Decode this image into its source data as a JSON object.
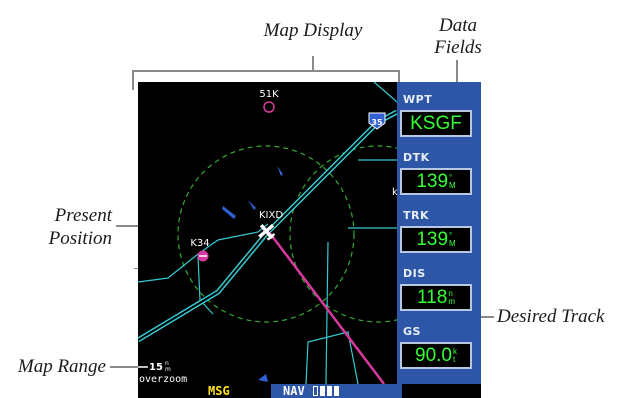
{
  "callouts": {
    "map_display": "Map Display",
    "data_fields_line1": "Data",
    "data_fields_line2": "Fields",
    "present_position_line1": "Present",
    "present_position_line2": "Position",
    "desired_track": "Desired Track",
    "map_range": "Map Range"
  },
  "map": {
    "waypoint_51k": "51K",
    "waypoint_kixd": "KIXD",
    "waypoint_k34": "K34",
    "waypoint_k_partial": "k",
    "highway_shield": "35",
    "range_value": "15",
    "range_unit_top": "n",
    "range_unit_bottom": "m",
    "overzoom": "overzoom"
  },
  "data_fields": [
    {
      "label": "WPT",
      "value": "KSGF",
      "unit_top": "",
      "unit_bottom": ""
    },
    {
      "label": "DTK",
      "value": "139",
      "unit_top": "°",
      "unit_bottom": "M"
    },
    {
      "label": "TRK",
      "value": "139",
      "unit_top": "°",
      "unit_bottom": "M"
    },
    {
      "label": "DIS",
      "value": "118",
      "unit_top": "n",
      "unit_bottom": "m"
    },
    {
      "label": "GS",
      "value": "90.0",
      "unit_top": "k",
      "unit_bottom": "t"
    }
  ],
  "status_bar": {
    "msg": "MSG",
    "nav": "NAV",
    "page_count": 4,
    "active_page": 1
  },
  "colors": {
    "data_panel": "#2d57a6",
    "field_value": "#33ff33",
    "msg": "#ffe11a",
    "route": "#36c9d2",
    "desired_track": "#d6399e",
    "range_ring": "#33aa33",
    "water": "#2f5fd0"
  },
  "icons": [
    "aircraft-icon",
    "airport-icon",
    "highway-shield-icon"
  ]
}
